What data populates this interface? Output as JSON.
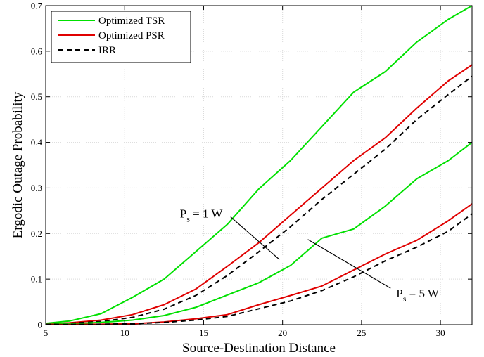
{
  "chart_data": {
    "type": "line",
    "xlabel": "Source-Destination Distance",
    "ylabel": "Ergodic Outage Probability",
    "xlim": [
      5,
      32
    ],
    "ylim": [
      0,
      0.7
    ],
    "xticks": [
      5,
      10,
      15,
      20,
      25,
      30
    ],
    "yticks": [
      0,
      0.1,
      0.2,
      0.3,
      0.4,
      0.5,
      0.6,
      0.7
    ],
    "xtick_labels": [
      "5",
      "10",
      "15",
      "20",
      "25",
      "30"
    ],
    "ytick_labels": [
      "0",
      "0.1",
      "0.2",
      "0.3",
      "0.4",
      "0.5",
      "0.6",
      "0.7"
    ],
    "grid": true,
    "legend_position": "top-left",
    "legend": [
      {
        "label": "Optimized TSR",
        "color": "#00e000",
        "style": "solid"
      },
      {
        "label": "Optimized PSR",
        "color": "#e00000",
        "style": "solid"
      },
      {
        "label": "IRR",
        "color": "#000000",
        "style": "dashed"
      }
    ],
    "series": [
      {
        "name": "Optimized TSR",
        "group": "Ps = 1 W",
        "color": "#00e000",
        "style": "solid",
        "x": [
          5,
          6.5,
          8.5,
          10.5,
          12.5,
          14.5,
          16.5,
          18.5,
          20.5,
          22.5,
          24.5,
          26.5,
          28.5,
          30.5,
          32
        ],
        "y": [
          0.003,
          0.008,
          0.024,
          0.06,
          0.1,
          0.16,
          0.22,
          0.298,
          0.36,
          0.435,
          0.51,
          0.555,
          0.62,
          0.67,
          0.7
        ]
      },
      {
        "name": "Optimized PSR",
        "group": "Ps = 1 W",
        "color": "#e00000",
        "style": "solid",
        "x": [
          5,
          6.5,
          8.5,
          10.5,
          12.5,
          14.5,
          16.5,
          18.5,
          20.5,
          22.5,
          24.5,
          26.5,
          28.5,
          30.5,
          32
        ],
        "y": [
          0.001,
          0.004,
          0.01,
          0.022,
          0.044,
          0.078,
          0.128,
          0.18,
          0.24,
          0.3,
          0.36,
          0.41,
          0.475,
          0.535,
          0.57
        ]
      },
      {
        "name": "IRR",
        "group": "Ps = 1 W",
        "color": "#000000",
        "style": "dashed",
        "x": [
          5,
          6.5,
          8.5,
          10.5,
          12.5,
          14.5,
          16.5,
          18.5,
          20.5,
          22.5,
          24.5,
          26.5,
          28.5,
          30.5,
          32
        ],
        "y": [
          0.001,
          0.003,
          0.007,
          0.016,
          0.034,
          0.064,
          0.108,
          0.16,
          0.215,
          0.275,
          0.33,
          0.385,
          0.45,
          0.505,
          0.545
        ]
      },
      {
        "name": "Optimized TSR",
        "group": "Ps = 5 W",
        "color": "#00e000",
        "style": "solid",
        "x": [
          5,
          6.5,
          8.5,
          10.5,
          12.5,
          14.5,
          16.5,
          18.5,
          20.5,
          22.5,
          24.5,
          26.5,
          28.5,
          30.5,
          32
        ],
        "y": [
          0.0005,
          0.002,
          0.005,
          0.01,
          0.02,
          0.038,
          0.065,
          0.092,
          0.13,
          0.19,
          0.21,
          0.26,
          0.32,
          0.36,
          0.4
        ]
      },
      {
        "name": "Optimized PSR",
        "group": "Ps = 5 W",
        "color": "#e00000",
        "style": "solid",
        "x": [
          5,
          6.5,
          8.5,
          10.5,
          12.5,
          14.5,
          16.5,
          18.5,
          20.5,
          22.5,
          24.5,
          26.5,
          28.5,
          30.5,
          32
        ],
        "y": [
          0,
          0.0005,
          0.001,
          0.002,
          0.006,
          0.013,
          0.022,
          0.044,
          0.064,
          0.085,
          0.12,
          0.155,
          0.185,
          0.228,
          0.265
        ]
      },
      {
        "name": "IRR",
        "group": "Ps = 5 W",
        "color": "#000000",
        "style": "dashed",
        "x": [
          5,
          6.5,
          8.5,
          10.5,
          12.5,
          14.5,
          16.5,
          18.5,
          20.5,
          22.5,
          24.5,
          26.5,
          28.5,
          30.5,
          32
        ],
        "y": [
          0,
          0.0005,
          0.001,
          0.002,
          0.005,
          0.01,
          0.018,
          0.035,
          0.052,
          0.075,
          0.105,
          0.14,
          0.17,
          0.205,
          0.243
        ]
      }
    ],
    "annotations": [
      {
        "text_main": "P",
        "text_sub": "s",
        "text_rest": " = 1 W",
        "text_point": [
          13.5,
          0.235
        ],
        "arrow_to": [
          19.8,
          0.143
        ]
      },
      {
        "text_main": "P",
        "text_sub": "s",
        "text_rest": " = 5 W",
        "text_point": [
          27.2,
          0.06
        ],
        "arrow_to": [
          21.6,
          0.187
        ]
      }
    ]
  }
}
